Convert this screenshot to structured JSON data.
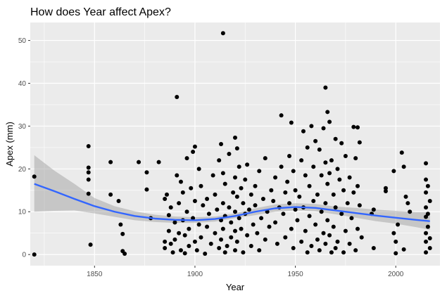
{
  "chart_data": {
    "type": "scatter",
    "title": "How does Year affect Apex?",
    "xlabel": "Year",
    "ylabel": "Apex (mm)",
    "xlim": [
      1818,
      2022
    ],
    "ylim": [
      -2.6,
      54.2
    ],
    "x_ticks": [
      1850,
      1900,
      1950,
      2000
    ],
    "y_ticks": [
      0,
      10,
      20,
      30,
      40,
      50
    ],
    "grid": true,
    "point_color": "#000000",
    "smooth_color": "#3366FF",
    "ribbon_color": "#999999",
    "panel_color": "#EBEBEB",
    "points": [
      [
        1820,
        18.2
      ],
      [
        1820,
        0
      ],
      [
        1847,
        25.3
      ],
      [
        1847,
        20.3
      ],
      [
        1847,
        19.2
      ],
      [
        1847,
        17.5
      ],
      [
        1847,
        14.2
      ],
      [
        1848,
        2.3
      ],
      [
        1858,
        21.6
      ],
      [
        1858,
        14.0
      ],
      [
        1862,
        12.5
      ],
      [
        1863,
        7.0
      ],
      [
        1864,
        4.8
      ],
      [
        1864,
        0.8
      ],
      [
        1865,
        0.2
      ],
      [
        1872,
        21.6
      ],
      [
        1876,
        19.2
      ],
      [
        1876,
        15.2
      ],
      [
        1878,
        8.5
      ],
      [
        1882,
        21.6
      ],
      [
        1885,
        13.0
      ],
      [
        1885,
        3.0
      ],
      [
        1885,
        1.5
      ],
      [
        1886,
        14.0
      ],
      [
        1887,
        9.2
      ],
      [
        1887,
        5.5
      ],
      [
        1888,
        11.0
      ],
      [
        1888,
        2.5
      ],
      [
        1889,
        0.5
      ],
      [
        1890,
        7.5
      ],
      [
        1890,
        3.5
      ],
      [
        1891,
        36.8
      ],
      [
        1891,
        18.5
      ],
      [
        1892,
        12.0
      ],
      [
        1892,
        5.0
      ],
      [
        1893,
        17.0
      ],
      [
        1893,
        1.0
      ],
      [
        1894,
        14.5
      ],
      [
        1894,
        8.0
      ],
      [
        1895,
        4.5
      ],
      [
        1895,
        0.3
      ],
      [
        1896,
        22.5
      ],
      [
        1896,
        10.0
      ],
      [
        1897,
        6.0
      ],
      [
        1897,
        2.0
      ],
      [
        1898,
        15.5
      ],
      [
        1899,
        24.0
      ],
      [
        1899,
        8.5
      ],
      [
        1900,
        25.2
      ],
      [
        1900,
        12.5
      ],
      [
        1900,
        3.0
      ],
      [
        1901,
        1.0
      ],
      [
        1902,
        20.0
      ],
      [
        1902,
        7.0
      ],
      [
        1903,
        16.0
      ],
      [
        1903,
        4.0
      ],
      [
        1904,
        11.5
      ],
      [
        1905,
        0.2
      ],
      [
        1906,
        13.0
      ],
      [
        1906,
        6.5
      ],
      [
        1907,
        9.5
      ],
      [
        1908,
        2.5
      ],
      [
        1909,
        18.5
      ],
      [
        1910,
        14.0
      ],
      [
        1910,
        5.0
      ],
      [
        1911,
        10.5
      ],
      [
        1912,
        22.0
      ],
      [
        1912,
        1.5
      ],
      [
        1913,
        25.8
      ],
      [
        1913,
        8.0
      ],
      [
        1913,
        3.5
      ],
      [
        1914,
        51.7
      ],
      [
        1914,
        19.0
      ],
      [
        1914,
        12.0
      ],
      [
        1914,
        6.0
      ],
      [
        1915,
        16.5
      ],
      [
        1915,
        9.0
      ],
      [
        1915,
        0.5
      ],
      [
        1916,
        2.0
      ],
      [
        1917,
        23.5
      ],
      [
        1917,
        11.0
      ],
      [
        1918,
        7.5
      ],
      [
        1918,
        4.0
      ],
      [
        1919,
        14.5
      ],
      [
        1920,
        27.3
      ],
      [
        1920,
        18.0
      ],
      [
        1920,
        10.0
      ],
      [
        1920,
        5.5
      ],
      [
        1920,
        1.0
      ],
      [
        1921,
        24.8
      ],
      [
        1921,
        13.5
      ],
      [
        1921,
        3.0
      ],
      [
        1922,
        20.5
      ],
      [
        1922,
        8.5
      ],
      [
        1923,
        15.5
      ],
      [
        1923,
        6.0
      ],
      [
        1924,
        12.0
      ],
      [
        1924,
        0.5
      ],
      [
        1925,
        17.5
      ],
      [
        1925,
        9.5
      ],
      [
        1926,
        21.0
      ],
      [
        1926,
        4.5
      ],
      [
        1927,
        10.5
      ],
      [
        1928,
        14.0
      ],
      [
        1928,
        2.0
      ],
      [
        1929,
        7.0
      ],
      [
        1930,
        16.0
      ],
      [
        1930,
        11.5
      ],
      [
        1931,
        5.0
      ],
      [
        1932,
        19.5
      ],
      [
        1932,
        1.0
      ],
      [
        1933,
        8.5
      ],
      [
        1934,
        13.0
      ],
      [
        1935,
        22.5
      ],
      [
        1935,
        3.5
      ],
      [
        1936,
        10.0
      ],
      [
        1937,
        6.5
      ],
      [
        1938,
        15.0
      ],
      [
        1939,
        12.5
      ],
      [
        1940,
        18.0
      ],
      [
        1940,
        7.5
      ],
      [
        1941,
        2.5
      ],
      [
        1942,
        11.0
      ],
      [
        1943,
        32.5
      ],
      [
        1943,
        20.5
      ],
      [
        1944,
        9.5
      ],
      [
        1945,
        14.5
      ],
      [
        1945,
        4.0
      ],
      [
        1946,
        17.0
      ],
      [
        1947,
        23.0
      ],
      [
        1947,
        12.0
      ],
      [
        1948,
        30.8
      ],
      [
        1948,
        6.0
      ],
      [
        1949,
        19.5
      ],
      [
        1949,
        1.5
      ],
      [
        1950,
        15.0
      ],
      [
        1950,
        10.5
      ],
      [
        1951,
        8.0
      ],
      [
        1952,
        13.5
      ],
      [
        1953,
        22.0
      ],
      [
        1953,
        3.0
      ],
      [
        1954,
        28.8
      ],
      [
        1954,
        11.0
      ],
      [
        1955,
        18.5
      ],
      [
        1955,
        5.5
      ],
      [
        1956,
        25.0
      ],
      [
        1956,
        0.5
      ],
      [
        1957,
        16.0
      ],
      [
        1957,
        9.0
      ],
      [
        1958,
        30.0
      ],
      [
        1958,
        2.0
      ],
      [
        1959,
        20.5
      ],
      [
        1959,
        12.5
      ],
      [
        1960,
        26.5
      ],
      [
        1960,
        7.0
      ],
      [
        1961,
        14.0
      ],
      [
        1961,
        3.5
      ],
      [
        1962,
        24.5
      ],
      [
        1962,
        1.0
      ],
      [
        1963,
        18.5
      ],
      [
        1963,
        10.0
      ],
      [
        1964,
        29.5
      ],
      [
        1964,
        5.0
      ],
      [
        1965,
        39.0
      ],
      [
        1965,
        21.5
      ],
      [
        1965,
        12.0
      ],
      [
        1965,
        2.5
      ],
      [
        1966,
        33.3
      ],
      [
        1966,
        16.5
      ],
      [
        1966,
        8.0
      ],
      [
        1967,
        31.0
      ],
      [
        1967,
        19.0
      ],
      [
        1967,
        4.5
      ],
      [
        1968,
        22.0
      ],
      [
        1968,
        0.5
      ],
      [
        1969,
        14.0
      ],
      [
        1969,
        6.5
      ],
      [
        1970,
        27.0
      ],
      [
        1970,
        11.0
      ],
      [
        1970,
        1.5
      ],
      [
        1971,
        20.0
      ],
      [
        1971,
        3.0
      ],
      [
        1972,
        17.5
      ],
      [
        1973,
        26.0
      ],
      [
        1973,
        9.5
      ],
      [
        1974,
        15.0
      ],
      [
        1974,
        0.5
      ],
      [
        1975,
        23.0
      ],
      [
        1975,
        5.5
      ],
      [
        1976,
        12.0
      ],
      [
        1977,
        18.0
      ],
      [
        1977,
        2.5
      ],
      [
        1978,
        8.5
      ],
      [
        1979,
        29.8
      ],
      [
        1979,
        14.5
      ],
      [
        1980,
        22.5
      ],
      [
        1980,
        1.0
      ],
      [
        1981,
        29.7
      ],
      [
        1981,
        16.0
      ],
      [
        1981,
        6.0
      ],
      [
        1982,
        26.2
      ],
      [
        1982,
        11.5
      ],
      [
        1983,
        4.0
      ],
      [
        1988,
        9.5
      ],
      [
        1989,
        10.5
      ],
      [
        1989,
        1.5
      ],
      [
        1995,
        15.5
      ],
      [
        1995,
        14.8
      ],
      [
        1999,
        19.5
      ],
      [
        1999,
        5.0
      ],
      [
        2000,
        3.0
      ],
      [
        2000,
        0.3
      ],
      [
        2001,
        7.0
      ],
      [
        2003,
        23.8
      ],
      [
        2004,
        20.5
      ],
      [
        2004,
        1.2
      ],
      [
        2005,
        13.5
      ],
      [
        2006,
        12.0
      ],
      [
        2007,
        10.0
      ],
      [
        2015,
        21.3
      ],
      [
        2015,
        17.5
      ],
      [
        2015,
        14.5
      ],
      [
        2015,
        11.0
      ],
      [
        2015,
        8.8
      ],
      [
        2015,
        5.0
      ],
      [
        2015,
        3.0
      ],
      [
        2015,
        0.5
      ],
      [
        2016,
        16.0
      ],
      [
        2016,
        9.5
      ],
      [
        2016,
        6.5
      ],
      [
        2017,
        12.5
      ],
      [
        2017,
        3.8
      ],
      [
        2017,
        1.5
      ]
    ],
    "smooth": [
      [
        1820,
        16.5
      ],
      [
        1830,
        14.8
      ],
      [
        1840,
        13.0
      ],
      [
        1850,
        11.3
      ],
      [
        1860,
        10.0
      ],
      [
        1870,
        9.0
      ],
      [
        1880,
        8.4
      ],
      [
        1890,
        8.1
      ],
      [
        1900,
        8.0
      ],
      [
        1910,
        8.3
      ],
      [
        1920,
        9.0
      ],
      [
        1930,
        10.0
      ],
      [
        1940,
        10.8
      ],
      [
        1950,
        11.1
      ],
      [
        1960,
        10.9
      ],
      [
        1970,
        10.3
      ],
      [
        1980,
        9.7
      ],
      [
        1990,
        9.1
      ],
      [
        2000,
        8.6
      ],
      [
        2010,
        8.1
      ],
      [
        2017,
        7.8
      ]
    ],
    "ribbon": [
      [
        1820,
        10.0,
        23.2
      ],
      [
        1830,
        10.2,
        19.6
      ],
      [
        1840,
        10.3,
        16.5
      ],
      [
        1850,
        9.6,
        13.2
      ],
      [
        1860,
        8.8,
        11.3
      ],
      [
        1870,
        8.0,
        10.1
      ],
      [
        1880,
        7.6,
        9.3
      ],
      [
        1890,
        7.4,
        8.9
      ],
      [
        1900,
        7.4,
        8.7
      ],
      [
        1910,
        7.7,
        8.9
      ],
      [
        1920,
        8.5,
        9.6
      ],
      [
        1930,
        9.2,
        10.8
      ],
      [
        1940,
        10.0,
        11.7
      ],
      [
        1950,
        10.3,
        12.0
      ],
      [
        1960,
        10.1,
        11.8
      ],
      [
        1970,
        9.4,
        11.2
      ],
      [
        1980,
        8.6,
        10.9
      ],
      [
        1990,
        7.8,
        10.5
      ],
      [
        2000,
        7.2,
        10.2
      ],
      [
        2010,
        6.4,
        9.9
      ],
      [
        2017,
        5.8,
        9.9
      ]
    ]
  }
}
